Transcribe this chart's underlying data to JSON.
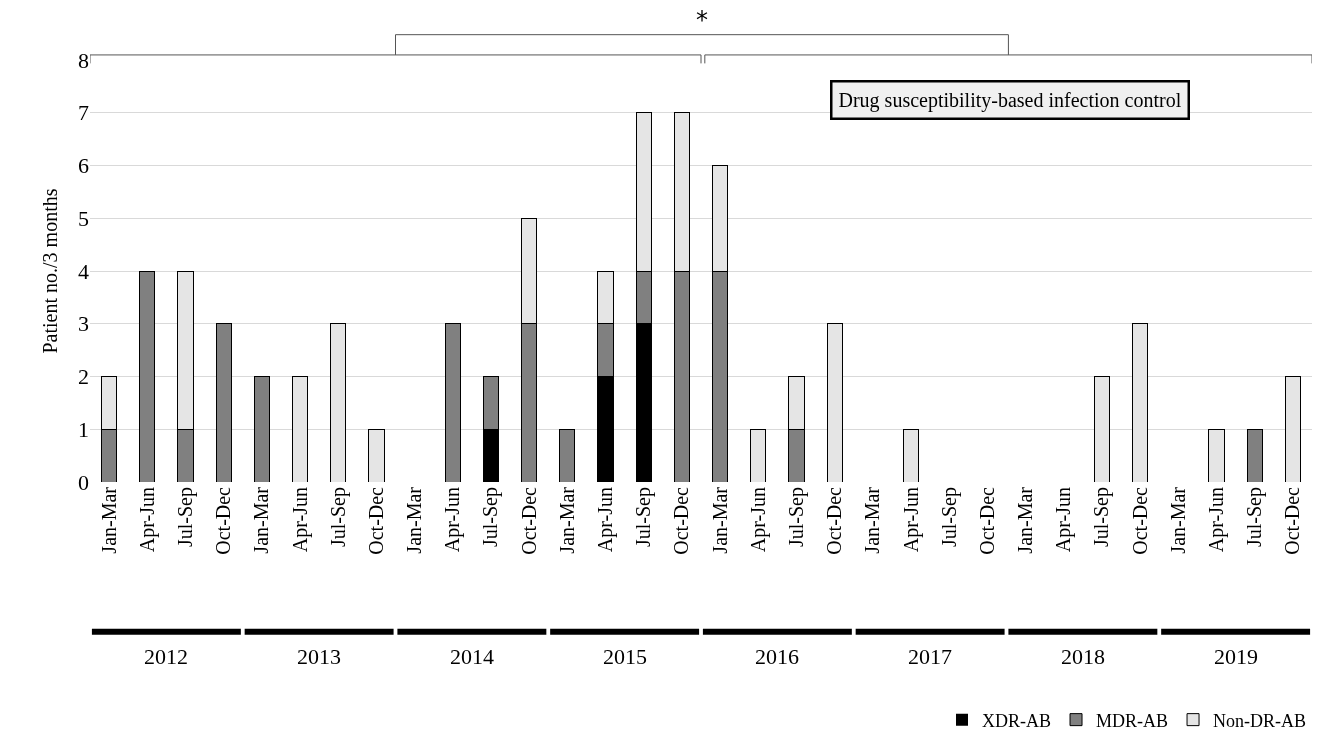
{
  "chart_data": {
    "type": "bar",
    "stacked": true,
    "ylabel": "Patient no./3 months",
    "categories": [
      "Jan-Mar",
      "Apr-Jun",
      "Jul-Sep",
      "Oct-Dec",
      "Jan-Mar",
      "Apr-Jun",
      "Jul-Sep",
      "Oct-Dec",
      "Jan-Mar",
      "Apr-Jun",
      "Jul-Sep",
      "Oct-Dec",
      "Jan-Mar",
      "Apr-Jun",
      "Jul-Sep",
      "Oct-Dec",
      "Jan-Mar",
      "Apr-Jun",
      "Jul-Sep",
      "Oct-Dec",
      "Jan-Mar",
      "Apr-Jun",
      "Jul-Sep",
      "Oct-Dec",
      "Jan-Mar",
      "Apr-Jun",
      "Jul-Sep",
      "Oct-Dec",
      "Jan-Mar",
      "Apr-Jun",
      "Jul-Sep",
      "Oct-Dec"
    ],
    "series": [
      {
        "name": "XDR-AB",
        "color": "#000000",
        "values": [
          0,
          0,
          0,
          0,
          0,
          0,
          0,
          0,
          0,
          0,
          1,
          0,
          0,
          2,
          3,
          0,
          0,
          0,
          0,
          0,
          0,
          0,
          0,
          0,
          0,
          0,
          0,
          0,
          0,
          0,
          0,
          0
        ]
      },
      {
        "name": "MDR-AB",
        "color": "#808080",
        "values": [
          1,
          4,
          1,
          3,
          2,
          0,
          0,
          0,
          0,
          3,
          1,
          3,
          1,
          1,
          1,
          4,
          4,
          0,
          1,
          0,
          0,
          0,
          0,
          0,
          0,
          0,
          0,
          0,
          0,
          0,
          1,
          0
        ]
      },
      {
        "name": "Non-DR-AB",
        "color": "#e5e5e5",
        "values": [
          1,
          0,
          3,
          0,
          0,
          2,
          3,
          1,
          0,
          0,
          0,
          2,
          0,
          1,
          3,
          3,
          2,
          1,
          1,
          3,
          0,
          1,
          0,
          0,
          0,
          0,
          2,
          3,
          0,
          1,
          0,
          2
        ]
      }
    ],
    "ylim": [
      0,
      8
    ],
    "yticks": [
      0,
      1,
      2,
      3,
      4,
      5,
      6,
      7,
      8
    ],
    "grid": "y",
    "legend": "bottom right",
    "annotations": [
      "*",
      "Drug susceptibility-based infection control",
      "2012",
      "2013",
      "2014",
      "2015",
      "2016",
      "2017",
      "2018",
      "2019"
    ]
  }
}
